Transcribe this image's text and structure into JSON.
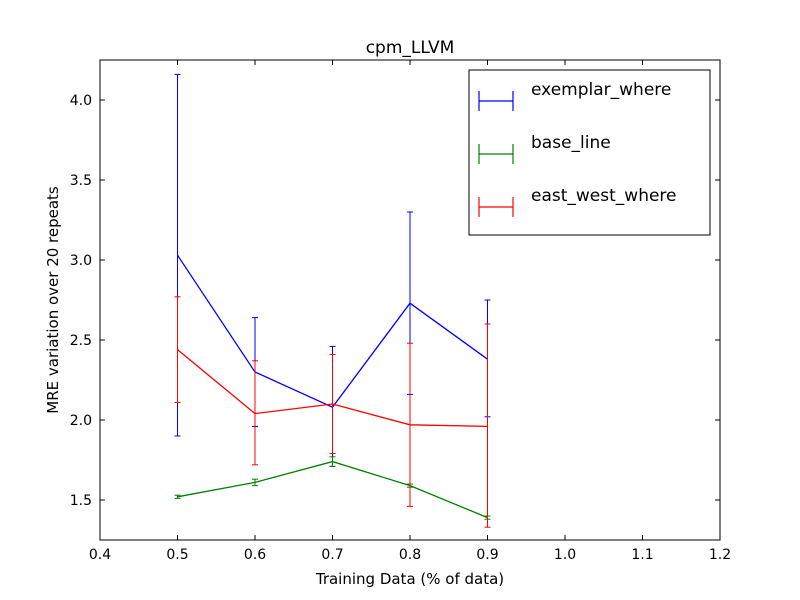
{
  "chart_data": {
    "type": "line",
    "title": "cpm_LLVM",
    "xlabel": "Training Data (% of data)",
    "ylabel": "MRE variation over 20 repeats",
    "xlim": [
      0.4,
      1.2
    ],
    "ylim": [
      1.25,
      4.25
    ],
    "x_ticks": [
      0.4,
      0.5,
      0.6,
      0.7,
      0.8,
      0.9,
      1.0,
      1.1,
      1.2
    ],
    "x_tick_labels": [
      "0.4",
      "0.5",
      "0.6",
      "0.7",
      "0.8",
      "0.9",
      "1.0",
      "1.1",
      "1.2"
    ],
    "y_ticks": [
      1.5,
      2.0,
      2.5,
      3.0,
      3.5,
      4.0
    ],
    "y_tick_labels": [
      "1.5",
      "2.0",
      "2.5",
      "3.0",
      "3.5",
      "4.0"
    ],
    "grid": false,
    "legend_position": "top-right",
    "x": [
      0.5,
      0.6,
      0.7,
      0.8,
      0.9
    ],
    "series": [
      {
        "name": "exemplar_where",
        "color": "#0000ff",
        "values": [
          3.03,
          2.3,
          2.08,
          2.73,
          2.38
        ],
        "err_low": [
          1.9,
          1.96,
          1.71,
          2.16,
          2.02
        ],
        "err_high": [
          4.16,
          2.64,
          2.46,
          3.3,
          2.75
        ]
      },
      {
        "name": "base_line",
        "color": "#008000",
        "values": [
          1.52,
          1.61,
          1.74,
          1.59,
          1.39
        ],
        "err_low": [
          1.51,
          1.59,
          1.71,
          1.58,
          1.38
        ],
        "err_high": [
          1.53,
          1.63,
          1.77,
          1.6,
          1.4
        ]
      },
      {
        "name": "east_west_where",
        "color": "#ff0000",
        "values": [
          2.44,
          2.04,
          2.1,
          1.97,
          1.96
        ],
        "err_low": [
          2.11,
          1.72,
          1.79,
          1.46,
          1.33
        ],
        "err_high": [
          2.77,
          2.37,
          2.41,
          2.48,
          2.6
        ]
      }
    ]
  }
}
